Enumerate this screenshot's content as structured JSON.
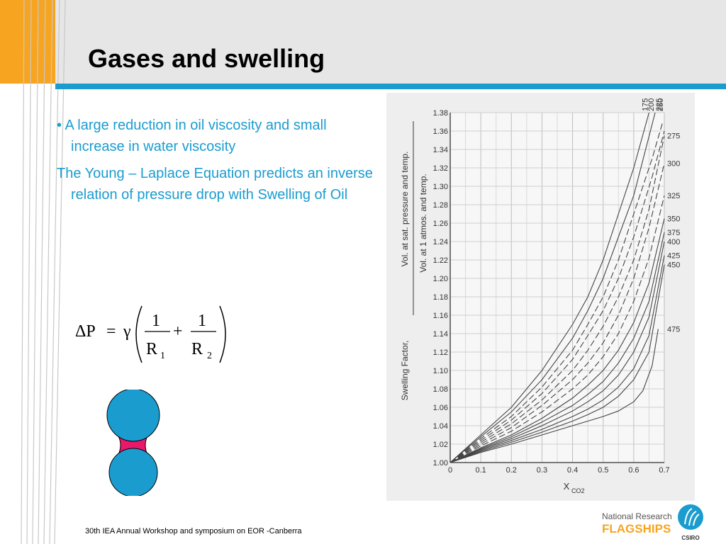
{
  "slide": {
    "title": "Gases and swelling",
    "bullet": "A large reduction in oil viscosity and small increase in water  viscosity",
    "paragraph": "The Young – Laplace Equation predicts an inverse relation of pressure drop with Swelling of Oil",
    "footer": "30th IEA Annual Workshop and symposium on EOR -Canberra",
    "logo": {
      "line1": "National Research",
      "line2": "FLAGSHIPS",
      "csiro": "CSIRO"
    },
    "colors": {
      "accent": "#1b9ccf",
      "orange": "#f7a521",
      "droplet": "#1b9ccf",
      "neck": "#e8196b"
    }
  },
  "equation": {
    "lhs": "ΔP",
    "eq": "=",
    "gamma": "γ",
    "num1": "1",
    "den1": "R",
    "sub1": "1",
    "plus": "+",
    "num2": "1",
    "den2": "R",
    "sub2": "2"
  },
  "chart_data": {
    "type": "line",
    "xlabel": "X",
    "xlabel_sub": "CO2",
    "ylabel_outer": "Swelling Factor,",
    "ylabel_num": "Vol. at sat. pressure and temp.",
    "ylabel_den": "Vol. at 1 atmos. and temp.",
    "xlim": [
      0,
      0.7
    ],
    "ylim": [
      1.0,
      1.38
    ],
    "x_ticks": [
      0,
      0.1,
      0.2,
      0.3,
      0.4,
      0.5,
      0.6,
      0.7
    ],
    "x_tick_labels": [
      "0",
      "0.1",
      "0.2",
      "0.3",
      "0.4",
      "0.5",
      "0.6",
      "0.7"
    ],
    "y_ticks": [
      1.0,
      1.02,
      1.04,
      1.06,
      1.08,
      1.1,
      1.12,
      1.14,
      1.16,
      1.18,
      1.2,
      1.22,
      1.24,
      1.26,
      1.28,
      1.3,
      1.32,
      1.34,
      1.36,
      1.38
    ],
    "y_tick_labels": [
      "1.00",
      "1.02",
      "1.04",
      "1.06",
      "1.08",
      "1.10",
      "1.12",
      "1.14",
      "1.16",
      "1.18",
      "1.20",
      "1.22",
      "1.24",
      "1.26",
      "1.28",
      "1.30",
      "1.32",
      "1.34",
      "1.36",
      "1.38"
    ],
    "grid": true,
    "series": [
      {
        "name": "175",
        "label_pos": "top",
        "style": "solid",
        "x": [
          0,
          0.1,
          0.2,
          0.3,
          0.4,
          0.45,
          0.5,
          0.55,
          0.6,
          0.65
        ],
        "y": [
          1.0,
          1.03,
          1.06,
          1.1,
          1.15,
          1.18,
          1.22,
          1.27,
          1.32,
          1.38
        ]
      },
      {
        "name": "200",
        "label_pos": "top",
        "style": "solid",
        "x": [
          0,
          0.1,
          0.2,
          0.3,
          0.4,
          0.45,
          0.5,
          0.55,
          0.6,
          0.67
        ],
        "y": [
          1.0,
          1.028,
          1.055,
          1.09,
          1.135,
          1.165,
          1.2,
          1.245,
          1.29,
          1.38
        ]
      },
      {
        "name": "225",
        "label_pos": "top",
        "style": "mixed",
        "x": [
          0,
          0.1,
          0.2,
          0.3,
          0.4,
          0.45,
          0.5,
          0.55,
          0.6,
          0.66,
          0.695
        ],
        "y": [
          1.0,
          1.026,
          1.05,
          1.082,
          1.122,
          1.15,
          1.18,
          1.22,
          1.27,
          1.33,
          1.37
        ]
      },
      {
        "name": "250",
        "label_pos": "top",
        "style": "mixed",
        "x": [
          0,
          0.1,
          0.2,
          0.3,
          0.4,
          0.45,
          0.5,
          0.55,
          0.6,
          0.66,
          0.7
        ],
        "y": [
          1.0,
          1.024,
          1.046,
          1.075,
          1.112,
          1.138,
          1.165,
          1.2,
          1.245,
          1.31,
          1.36
        ]
      },
      {
        "name": "275",
        "label_pos": "right",
        "style": "mixed",
        "x": [
          0,
          0.1,
          0.2,
          0.3,
          0.4,
          0.45,
          0.5,
          0.55,
          0.6,
          0.65,
          0.7
        ],
        "y": [
          1.0,
          1.022,
          1.042,
          1.068,
          1.1,
          1.122,
          1.148,
          1.18,
          1.22,
          1.275,
          1.355
        ]
      },
      {
        "name": "300",
        "label_pos": "right",
        "style": "mixed",
        "x": [
          0,
          0.1,
          0.2,
          0.3,
          0.4,
          0.45,
          0.5,
          0.55,
          0.6,
          0.65,
          0.7
        ],
        "y": [
          1.0,
          1.02,
          1.038,
          1.062,
          1.09,
          1.108,
          1.13,
          1.16,
          1.2,
          1.255,
          1.325
        ]
      },
      {
        "name": "325",
        "label_pos": "right",
        "style": "mixed",
        "x": [
          0,
          0.1,
          0.2,
          0.3,
          0.4,
          0.45,
          0.5,
          0.55,
          0.6,
          0.65,
          0.7
        ],
        "y": [
          1.0,
          1.018,
          1.034,
          1.055,
          1.08,
          1.095,
          1.115,
          1.14,
          1.175,
          1.222,
          1.29
        ]
      },
      {
        "name": "350",
        "label_pos": "right",
        "style": "solid",
        "x": [
          0,
          0.1,
          0.2,
          0.3,
          0.4,
          0.45,
          0.5,
          0.55,
          0.6,
          0.65,
          0.7
        ],
        "y": [
          1.0,
          1.016,
          1.03,
          1.048,
          1.07,
          1.084,
          1.1,
          1.122,
          1.152,
          1.195,
          1.265
        ]
      },
      {
        "name": "375",
        "label_pos": "right",
        "style": "solid",
        "x": [
          0,
          0.1,
          0.2,
          0.3,
          0.4,
          0.45,
          0.5,
          0.55,
          0.6,
          0.65,
          0.7
        ],
        "y": [
          1.0,
          1.015,
          1.028,
          1.044,
          1.062,
          1.074,
          1.088,
          1.108,
          1.135,
          1.175,
          1.25
        ]
      },
      {
        "name": "400",
        "label_pos": "right",
        "style": "solid",
        "x": [
          0,
          0.1,
          0.2,
          0.3,
          0.4,
          0.45,
          0.5,
          0.55,
          0.6,
          0.65,
          0.7
        ],
        "y": [
          1.0,
          1.014,
          1.026,
          1.04,
          1.056,
          1.066,
          1.078,
          1.095,
          1.12,
          1.158,
          1.24
        ]
      },
      {
        "name": "425",
        "label_pos": "right",
        "style": "solid",
        "x": [
          0,
          0.1,
          0.2,
          0.3,
          0.4,
          0.45,
          0.5,
          0.55,
          0.6,
          0.65,
          0.7
        ],
        "y": [
          1.0,
          1.013,
          1.024,
          1.036,
          1.05,
          1.058,
          1.068,
          1.082,
          1.102,
          1.138,
          1.225
        ]
      },
      {
        "name": "450",
        "label_pos": "right",
        "style": "solid",
        "x": [
          0,
          0.1,
          0.2,
          0.3,
          0.4,
          0.45,
          0.5,
          0.55,
          0.6,
          0.65,
          0.7
        ],
        "y": [
          1.0,
          1.012,
          1.022,
          1.033,
          1.045,
          1.052,
          1.06,
          1.072,
          1.09,
          1.12,
          1.215
        ]
      },
      {
        "name": "475",
        "label_pos": "right",
        "style": "solid",
        "x": [
          0,
          0.1,
          0.2,
          0.3,
          0.4,
          0.5,
          0.55,
          0.6,
          0.63,
          0.66,
          0.68
        ],
        "y": [
          1.0,
          1.011,
          1.02,
          1.03,
          1.04,
          1.05,
          1.056,
          1.066,
          1.078,
          1.105,
          1.145
        ]
      }
    ]
  }
}
